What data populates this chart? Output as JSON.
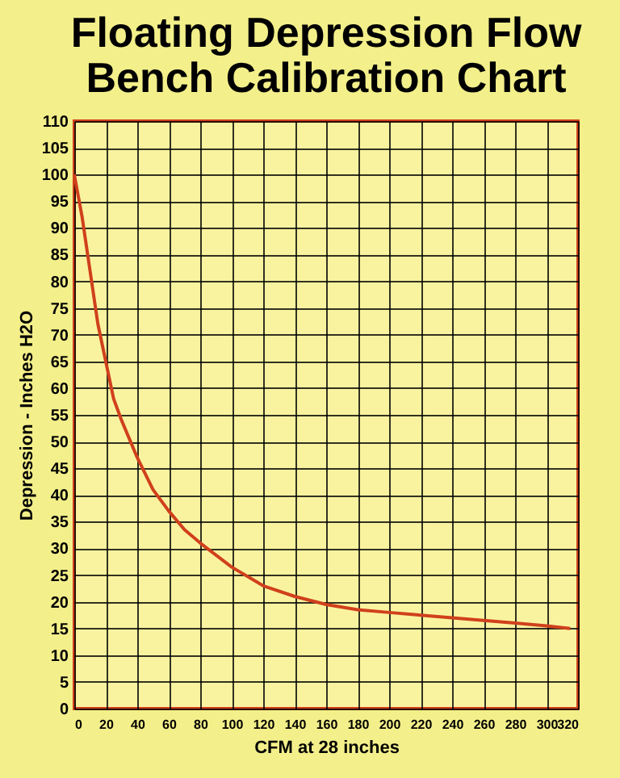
{
  "chart_data": {
    "type": "line",
    "title": [
      "Floating Depression Flow",
      "Bench Calibration Chart"
    ],
    "xlabel": "CFM at 28 inches",
    "ylabel": "Depression - Inches H2O",
    "x": [
      0,
      5,
      10,
      15,
      20,
      25,
      30,
      40,
      50,
      60,
      70,
      80,
      100,
      120,
      140,
      160,
      180,
      200,
      220,
      240,
      260,
      280,
      300,
      315
    ],
    "series": [
      {
        "color": "#d0401c",
        "values": [
          100,
          92,
          82,
          72,
          65,
          58,
          54,
          47,
          41,
          37,
          33.5,
          31,
          26.5,
          23,
          21,
          19.5,
          18.5,
          18,
          17.5,
          17,
          16.5,
          16,
          15.5,
          15
        ]
      }
    ],
    "xlim": [
      0,
      320
    ],
    "ylim": [
      0,
      110
    ],
    "xticks": [
      0,
      20,
      40,
      60,
      80,
      100,
      120,
      140,
      160,
      180,
      200,
      220,
      240,
      260,
      280,
      300,
      320
    ],
    "yticks": [
      0,
      5,
      10,
      15,
      20,
      25,
      30,
      35,
      40,
      45,
      50,
      55,
      60,
      65,
      70,
      75,
      80,
      85,
      90,
      95,
      100,
      105,
      110
    ],
    "grid": true,
    "marker": "none",
    "line_style": "solid"
  }
}
